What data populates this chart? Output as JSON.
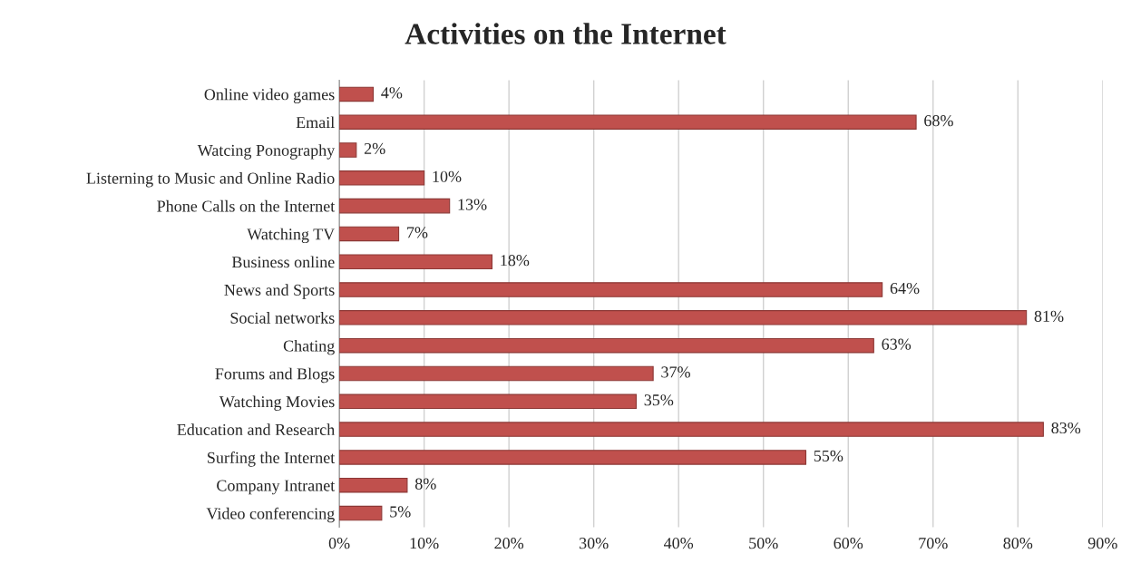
{
  "chart_data": {
    "type": "bar",
    "orientation": "horizontal",
    "title": "Activities on the Internet",
    "categories": [
      "Online video games",
      "Email",
      "Watcing Ponography",
      "Listerning to Music and Online Radio",
      "Phone Calls on the Internet",
      "Watching TV",
      "Business online",
      "News and Sports",
      "Social networks",
      "Chating",
      "Forums and Blogs",
      "Watching Movies",
      "Education and Research",
      "Surfing the Internet",
      "Company Intranet",
      "Video conferencing"
    ],
    "values": [
      4,
      68,
      2,
      10,
      13,
      7,
      18,
      64,
      81,
      63,
      37,
      35,
      83,
      55,
      8,
      5
    ],
    "value_labels": [
      "4%",
      "68%",
      "2%",
      "10%",
      "13%",
      "7%",
      "18%",
      "64%",
      "81%",
      "63%",
      "37%",
      "35%",
      "83%",
      "55%",
      "8%",
      "5%"
    ],
    "color": "#c0504d",
    "xlim": [
      0,
      90
    ],
    "xticks": [
      {
        "value": 0,
        "label": "0%"
      },
      {
        "value": 10,
        "label": "10%"
      },
      {
        "value": 20,
        "label": "20%"
      },
      {
        "value": 30,
        "label": "30%"
      },
      {
        "value": 40,
        "label": "40%"
      },
      {
        "value": 50,
        "label": "50%"
      },
      {
        "value": 60,
        "label": "60%"
      },
      {
        "value": 70,
        "label": "70%"
      },
      {
        "value": 80,
        "label": "80%"
      },
      {
        "value": 90,
        "label": "90%"
      }
    ],
    "grid": "x",
    "legend": false
  }
}
